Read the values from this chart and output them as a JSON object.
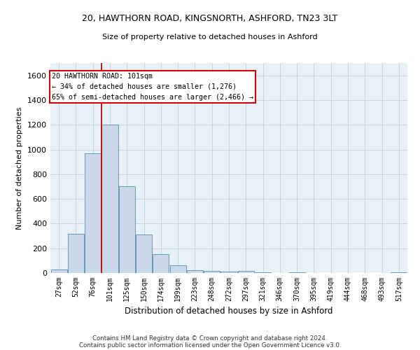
{
  "title1": "20, HAWTHORN ROAD, KINGSNORTH, ASHFORD, TN23 3LT",
  "title2": "Size of property relative to detached houses in Ashford",
  "xlabel": "Distribution of detached houses by size in Ashford",
  "ylabel": "Number of detached properties",
  "footer1": "Contains HM Land Registry data © Crown copyright and database right 2024.",
  "footer2": "Contains public sector information licensed under the Open Government Licence v3.0.",
  "annotation_title": "20 HAWTHORN ROAD: 101sqm",
  "annotation_line2": "← 34% of detached houses are smaller (1,276)",
  "annotation_line3": "65% of semi-detached houses are larger (2,466) →",
  "bar_color": "#c9d9ea",
  "bar_edge_color": "#6699bb",
  "vline_color": "#cc0000",
  "annotation_box_color": "#cc0000",
  "background_color": "#ffffff",
  "grid_color": "#cccccc",
  "categories": [
    "27sqm",
    "52sqm",
    "76sqm",
    "101sqm",
    "125sqm",
    "150sqm",
    "174sqm",
    "199sqm",
    "223sqm",
    "248sqm",
    "272sqm",
    "297sqm",
    "321sqm",
    "346sqm",
    "370sqm",
    "395sqm",
    "419sqm",
    "444sqm",
    "468sqm",
    "493sqm",
    "517sqm"
  ],
  "values": [
    30,
    320,
    970,
    1200,
    700,
    310,
    155,
    65,
    25,
    15,
    10,
    15,
    5,
    0,
    5,
    0,
    0,
    0,
    0,
    0,
    5
  ],
  "ylim": [
    0,
    1700
  ],
  "yticks": [
    0,
    200,
    400,
    600,
    800,
    1000,
    1200,
    1400,
    1600
  ],
  "vline_x_index": 3,
  "figsize": [
    6.0,
    5.0
  ],
  "dpi": 100
}
